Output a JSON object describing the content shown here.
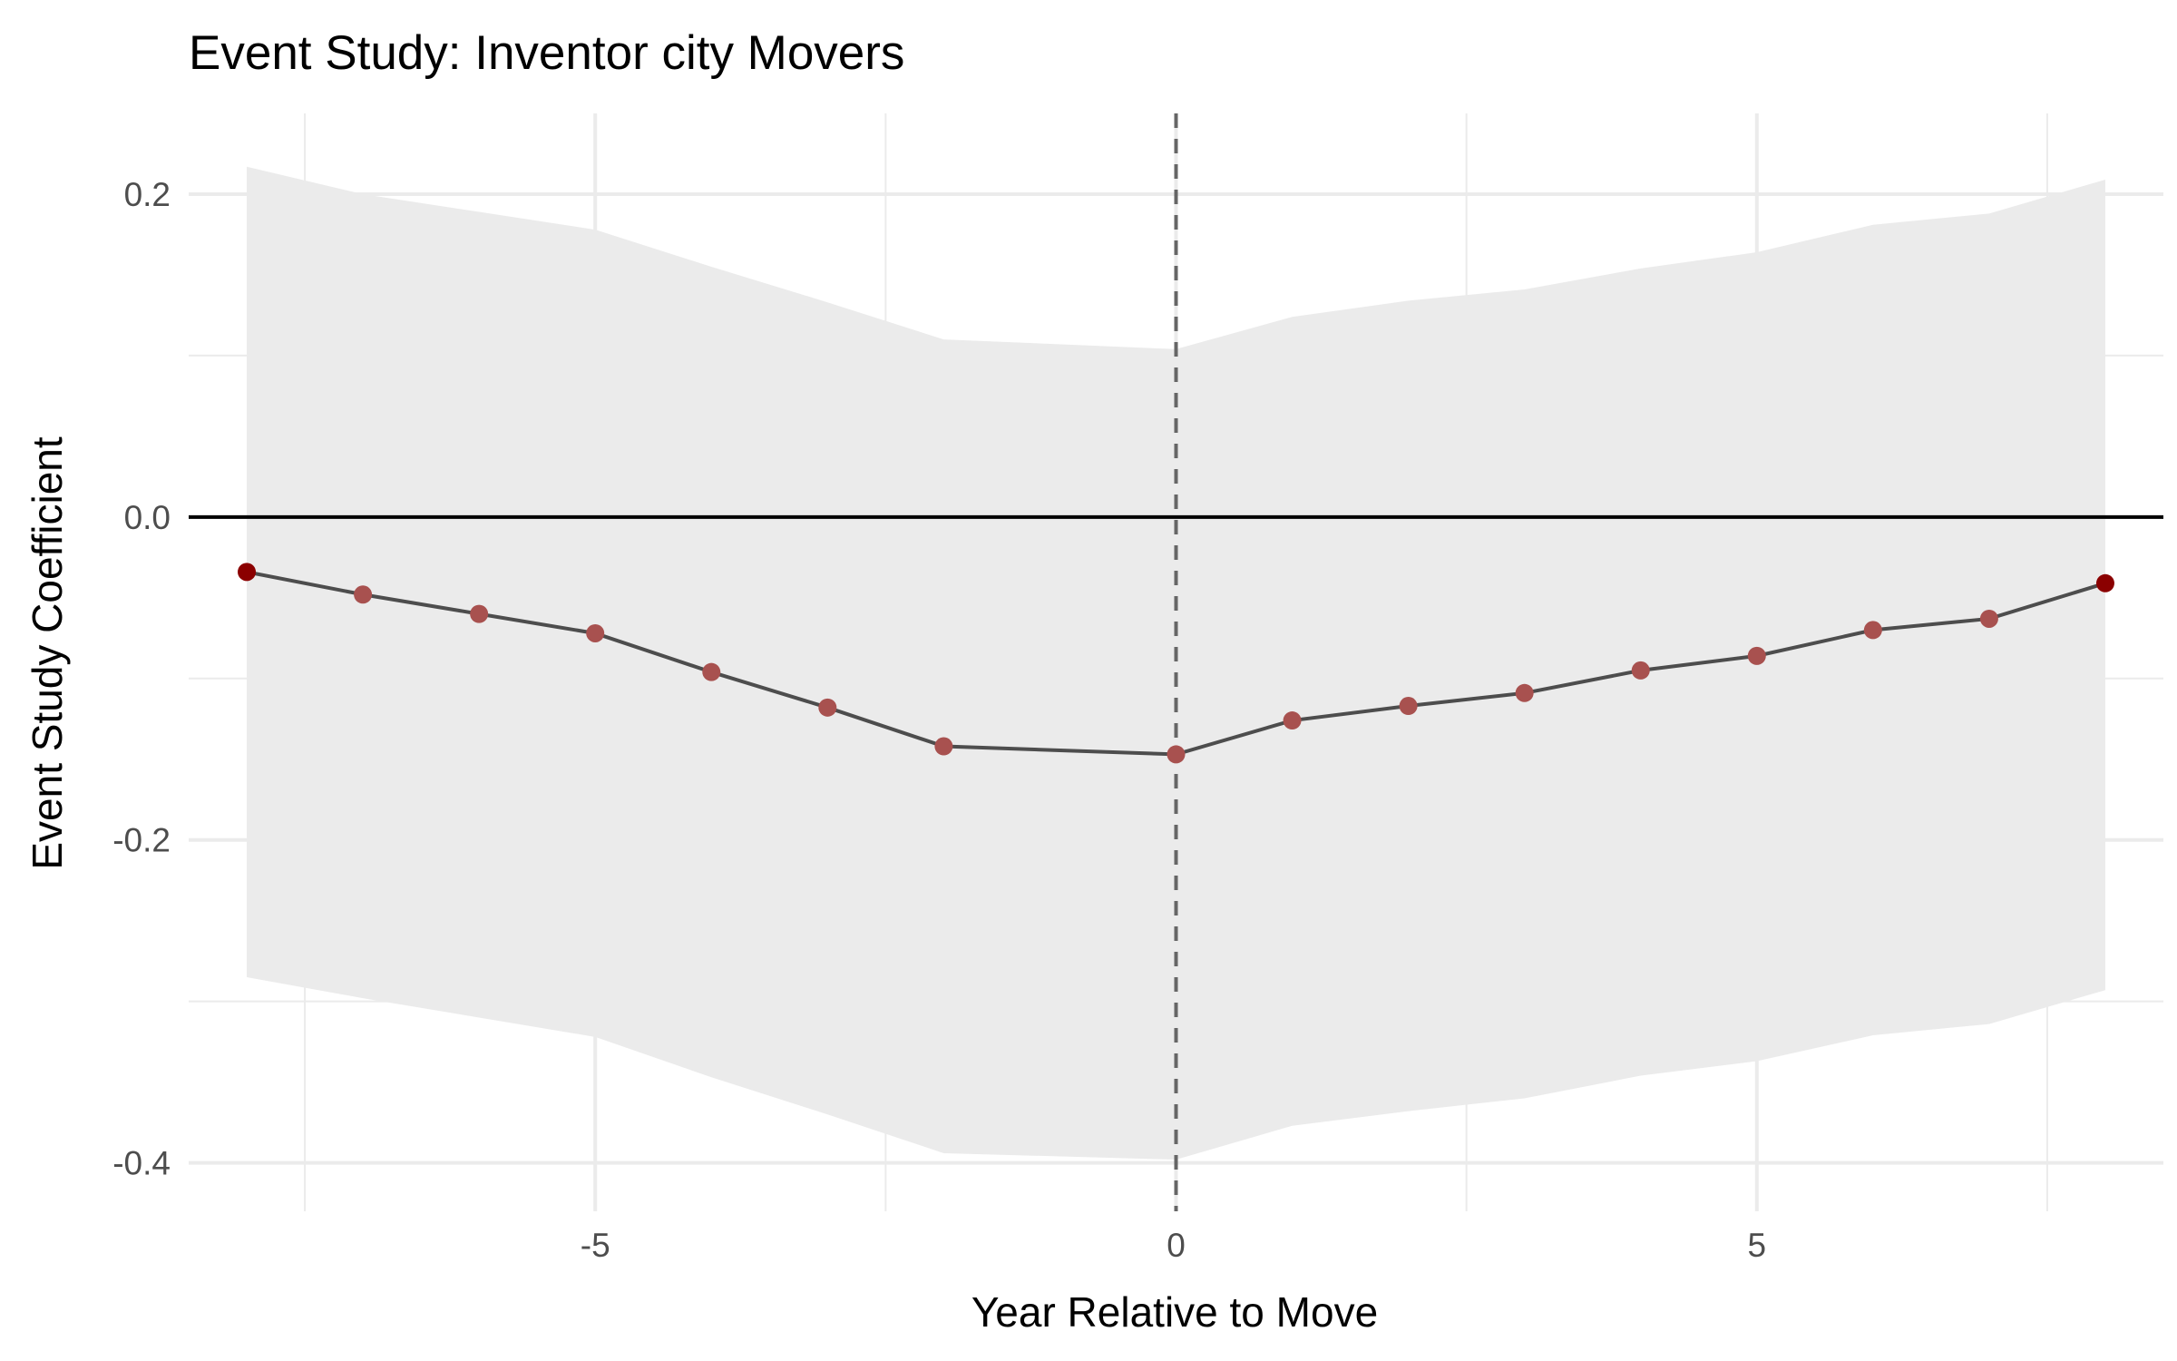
{
  "chart_data": {
    "type": "line",
    "title": "Event Study: Inventor city Movers",
    "xlabel": "Year Relative to Move",
    "ylabel": "Event Study Coefficient",
    "xlim": [
      -8.5,
      8.5
    ],
    "ylim": [
      -0.43,
      0.25
    ],
    "x_ticks": [
      -5,
      0,
      5
    ],
    "x_tick_labels": [
      "-5",
      "0",
      "5"
    ],
    "y_ticks": [
      0.2,
      0.0,
      -0.2,
      -0.4
    ],
    "y_tick_labels": [
      "0.2",
      "0.0",
      "-0.2",
      "-0.4"
    ],
    "x_minor_ticks": [
      -7.5,
      -2.5,
      2.5,
      7.5
    ],
    "y_minor_ticks": [
      0.1,
      -0.1,
      -0.3
    ],
    "grid": true,
    "reference_lines": {
      "hline_y": 0,
      "vline_x": 0
    },
    "colors": {
      "ribbon": "#ebebeb",
      "line": "#4d4d4d",
      "point": "#a8514f",
      "point_endpoint": "#8b0000",
      "zero_line": "#000000",
      "event_line": "#666666",
      "grid": "#ebebeb"
    },
    "series": [
      {
        "x": [
          -8,
          -7,
          -6,
          -5,
          -4,
          -3,
          -2,
          0,
          1,
          2,
          3,
          4,
          5,
          6,
          7,
          8
        ],
        "y": [
          -0.034,
          -0.048,
          -0.06,
          -0.072,
          -0.096,
          -0.118,
          -0.142,
          -0.147,
          -0.126,
          -0.117,
          -0.109,
          -0.095,
          -0.086,
          -0.07,
          -0.063,
          -0.041
        ],
        "ci_upper": [
          0.217,
          0.2,
          0.189,
          0.178,
          0.155,
          0.133,
          0.11,
          0.104,
          0.124,
          0.134,
          0.141,
          0.154,
          0.164,
          0.181,
          0.188,
          0.209
        ],
        "ci_lower": [
          -0.285,
          -0.298,
          -0.31,
          -0.322,
          -0.347,
          -0.37,
          -0.394,
          -0.398,
          -0.377,
          -0.368,
          -0.36,
          -0.346,
          -0.337,
          -0.321,
          -0.314,
          -0.293
        ]
      }
    ]
  }
}
